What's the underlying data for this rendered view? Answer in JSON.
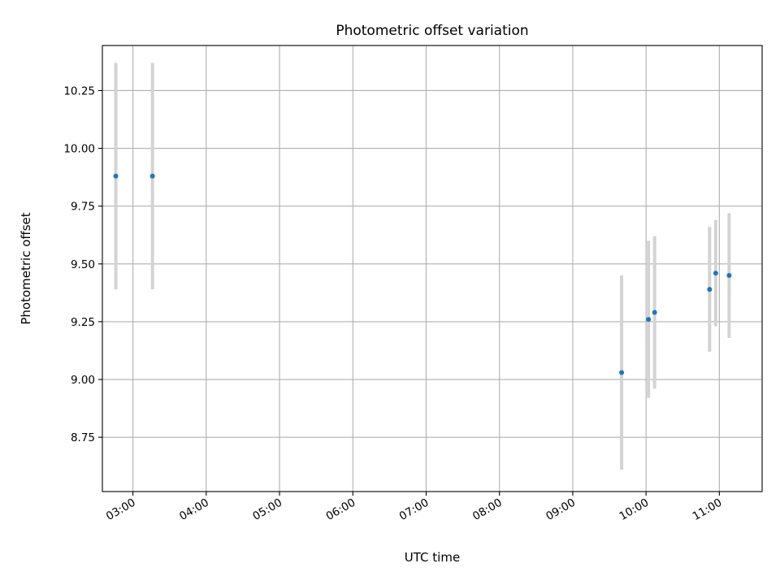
{
  "chart_data": {
    "type": "scatter",
    "title": "Photometric offset variation",
    "xlabel": "UTC time",
    "ylabel": "Photometric offset",
    "x_tick_labels": [
      "03:00",
      "04:00",
      "05:00",
      "06:00",
      "07:00",
      "08:00",
      "09:00",
      "10:00",
      "11:00"
    ],
    "y_tick_labels": [
      "8.75",
      "9.00",
      "9.25",
      "9.50",
      "9.75",
      "10.00",
      "10.25"
    ],
    "xlim": [
      "02:35",
      "11:35"
    ],
    "ylim": [
      8.515,
      10.445
    ],
    "grid": true,
    "points": [
      {
        "x": "02:46",
        "y": 9.88,
        "err": 0.49
      },
      {
        "x": "03:16",
        "y": 9.88,
        "err": 0.49
      },
      {
        "x": "09:40",
        "y": 9.03,
        "err": 0.42
      },
      {
        "x": "10:02",
        "y": 9.26,
        "err": 0.34
      },
      {
        "x": "10:07",
        "y": 9.29,
        "err": 0.33
      },
      {
        "x": "10:52",
        "y": 9.39,
        "err": 0.27
      },
      {
        "x": "10:57",
        "y": 9.46,
        "err": 0.23
      },
      {
        "x": "11:08",
        "y": 9.45,
        "err": 0.27
      }
    ],
    "colors": {
      "point": "#1f77b4",
      "errorbar": "#d3d3d3",
      "grid": "#b0b0b0",
      "axis": "#000000"
    }
  }
}
